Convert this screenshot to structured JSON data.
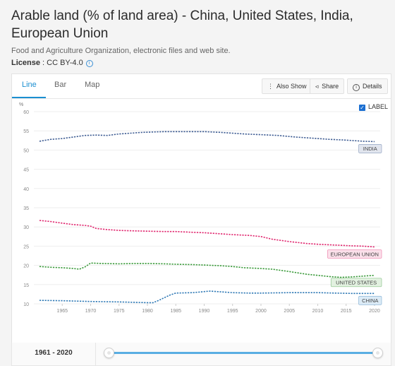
{
  "header": {
    "title": "Arable land (% of land area) - China, United States, India, European Union",
    "source": "Food and Agriculture Organization, electronic files and web site.",
    "license_label": "License",
    "license_value": " : CC BY-4.0"
  },
  "tabs": [
    {
      "label": "Line"
    },
    {
      "label": "Bar"
    },
    {
      "label": "Map"
    }
  ],
  "toolbar": {
    "also_show": "Also Show",
    "share": "Share",
    "details": "Details"
  },
  "label_toggle": "LABEL",
  "range": {
    "label": "1961 - 2020",
    "from": 1961,
    "to": 2020
  },
  "colors": {
    "accent": "#1b8fd1"
  },
  "chart_data": {
    "type": "line",
    "ylabel": "%",
    "xlim": [
      1960,
      2021
    ],
    "ylim": [
      10,
      60
    ],
    "yticks": [
      10,
      15,
      20,
      25,
      30,
      35,
      40,
      45,
      50,
      55,
      60
    ],
    "xticks": [
      1965,
      1970,
      1975,
      1980,
      1985,
      1990,
      1995,
      2000,
      2005,
      2010,
      2015,
      2020
    ],
    "grid": true,
    "series": [
      {
        "name": "INDIA",
        "color": "#3f5d93",
        "label_bg": "#e1e5ee",
        "points": [
          [
            1961,
            52.3
          ],
          [
            1963,
            52.8
          ],
          [
            1965,
            53.0
          ],
          [
            1967,
            53.4
          ],
          [
            1969,
            53.8
          ],
          [
            1971,
            53.9
          ],
          [
            1973,
            53.8
          ],
          [
            1975,
            54.2
          ],
          [
            1977,
            54.4
          ],
          [
            1979,
            54.6
          ],
          [
            1981,
            54.7
          ],
          [
            1983,
            54.8
          ],
          [
            1985,
            54.8
          ],
          [
            1987,
            54.8
          ],
          [
            1990,
            54.8
          ],
          [
            1993,
            54.6
          ],
          [
            1995,
            54.4
          ],
          [
            1997,
            54.2
          ],
          [
            2000,
            54.0
          ],
          [
            2003,
            53.8
          ],
          [
            2006,
            53.4
          ],
          [
            2009,
            53.1
          ],
          [
            2012,
            52.8
          ],
          [
            2015,
            52.6
          ],
          [
            2018,
            52.3
          ],
          [
            2020,
            52.2
          ]
        ]
      },
      {
        "name": "EUROPEAN UNION",
        "color": "#e0266e",
        "label_bg": "#fbe0ea",
        "points": [
          [
            1961,
            31.7
          ],
          [
            1963,
            31.4
          ],
          [
            1965,
            31.0
          ],
          [
            1967,
            30.6
          ],
          [
            1969,
            30.4
          ],
          [
            1970,
            30.2
          ],
          [
            1971,
            29.6
          ],
          [
            1973,
            29.3
          ],
          [
            1975,
            29.1
          ],
          [
            1977,
            29.0
          ],
          [
            1980,
            28.9
          ],
          [
            1983,
            28.8
          ],
          [
            1985,
            28.8
          ],
          [
            1988,
            28.6
          ],
          [
            1990,
            28.5
          ],
          [
            1992,
            28.3
          ],
          [
            1995,
            28.0
          ],
          [
            1998,
            27.8
          ],
          [
            2000,
            27.5
          ],
          [
            2002,
            26.8
          ],
          [
            2005,
            26.2
          ],
          [
            2008,
            25.7
          ],
          [
            2010,
            25.5
          ],
          [
            2013,
            25.3
          ],
          [
            2016,
            25.1
          ],
          [
            2018,
            25.0
          ],
          [
            2020,
            24.8
          ]
        ]
      },
      {
        "name": "UNITED STATES",
        "color": "#3a9a3a",
        "label_bg": "#e2f1e0",
        "points": [
          [
            1961,
            19.7
          ],
          [
            1963,
            19.5
          ],
          [
            1965,
            19.4
          ],
          [
            1967,
            19.2
          ],
          [
            1968,
            19.0
          ],
          [
            1969,
            19.6
          ],
          [
            1970,
            20.6
          ],
          [
            1972,
            20.5
          ],
          [
            1975,
            20.4
          ],
          [
            1978,
            20.5
          ],
          [
            1980,
            20.5
          ],
          [
            1983,
            20.4
          ],
          [
            1985,
            20.3
          ],
          [
            1988,
            20.2
          ],
          [
            1990,
            20.1
          ],
          [
            1993,
            19.9
          ],
          [
            1995,
            19.7
          ],
          [
            1997,
            19.4
          ],
          [
            2000,
            19.2
          ],
          [
            2002,
            19.0
          ],
          [
            2005,
            18.4
          ],
          [
            2008,
            17.7
          ],
          [
            2010,
            17.4
          ],
          [
            2012,
            17.1
          ],
          [
            2014,
            16.9
          ],
          [
            2016,
            17.0
          ],
          [
            2018,
            17.2
          ],
          [
            2020,
            17.4
          ]
        ]
      },
      {
        "name": "CHINA",
        "color": "#2f79b5",
        "label_bg": "#dcebf6",
        "points": [
          [
            1961,
            10.9
          ],
          [
            1965,
            10.8
          ],
          [
            1970,
            10.6
          ],
          [
            1975,
            10.5
          ],
          [
            1980,
            10.3
          ],
          [
            1981,
            10.3
          ],
          [
            1982,
            10.9
          ],
          [
            1983,
            11.6
          ],
          [
            1984,
            12.3
          ],
          [
            1985,
            12.8
          ],
          [
            1988,
            12.9
          ],
          [
            1991,
            13.3
          ],
          [
            1993,
            13.1
          ],
          [
            1995,
            12.9
          ],
          [
            1998,
            12.8
          ],
          [
            2000,
            12.8
          ],
          [
            2005,
            12.9
          ],
          [
            2008,
            12.9
          ],
          [
            2010,
            12.9
          ],
          [
            2013,
            12.8
          ],
          [
            2016,
            12.7
          ],
          [
            2018,
            12.7
          ],
          [
            2020,
            12.7
          ]
        ]
      }
    ]
  }
}
